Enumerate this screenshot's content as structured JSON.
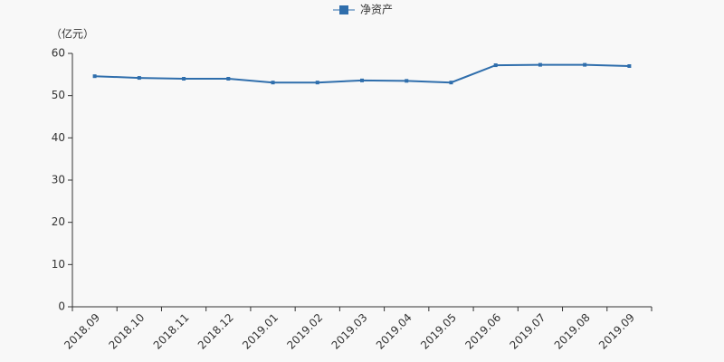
{
  "chart_data": {
    "type": "line",
    "y_label": "（亿元）",
    "categories": [
      "2018.09",
      "2018.10",
      "2018.11",
      "2018.12",
      "2019.01",
      "2019.02",
      "2019.03",
      "2019.04",
      "2019.05",
      "2019.06",
      "2019.07",
      "2019.08",
      "2019.09"
    ],
    "series": [
      {
        "name": "净资产",
        "color": "#2f6eac",
        "values": [
          54.6,
          54.2,
          54.0,
          54.0,
          53.1,
          53.1,
          53.6,
          53.5,
          53.1,
          57.2,
          57.3,
          57.3,
          57.0
        ]
      }
    ],
    "ylim": [
      0,
      60
    ],
    "yticks": [
      0,
      10,
      20,
      30,
      40,
      50,
      60
    ],
    "grid": false,
    "legend": "top"
  }
}
